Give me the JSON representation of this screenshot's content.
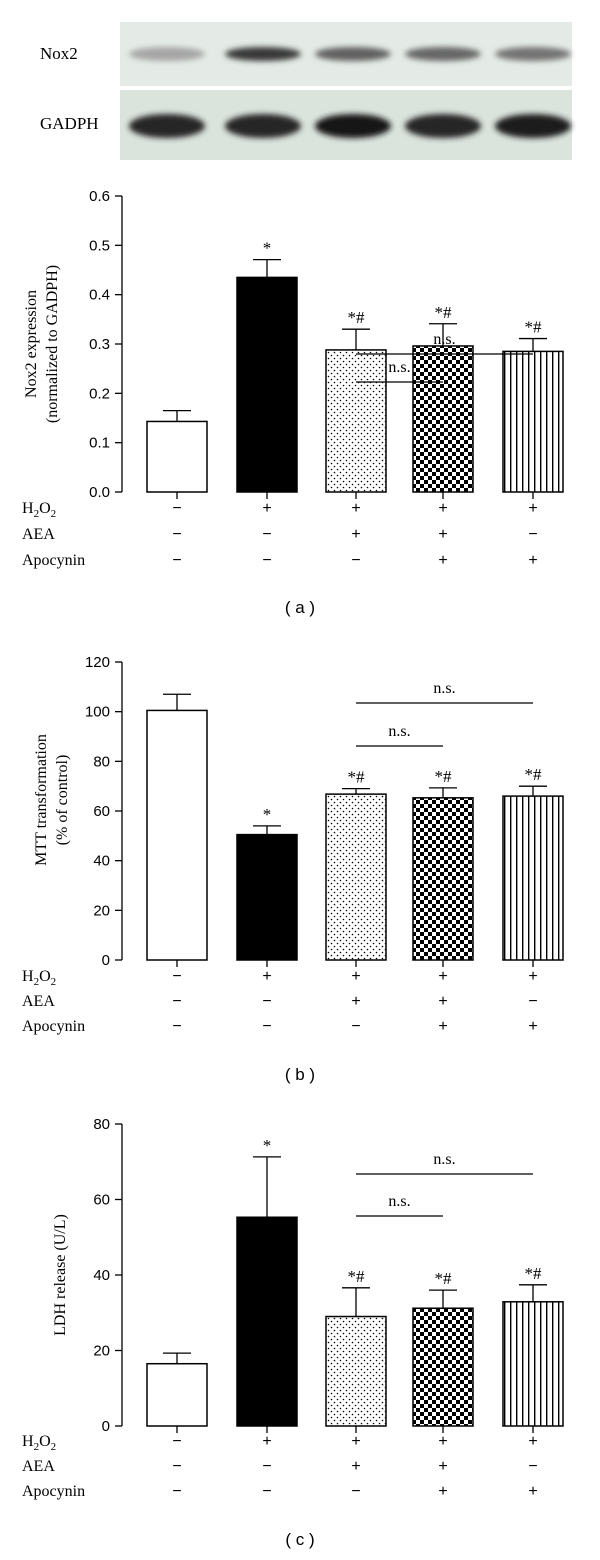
{
  "blot": {
    "labels": [
      "Nox2",
      "GADPH"
    ],
    "band_intensity": {
      "Nox2": [
        0.35,
        0.78,
        0.62,
        0.6,
        0.55
      ],
      "GADPH": [
        0.85,
        0.85,
        0.92,
        0.85,
        0.88
      ]
    }
  },
  "conditions": {
    "row_labels": [
      "H2O2",
      "AEA",
      "Apocynin"
    ],
    "rows": [
      [
        "−",
        "+",
        "+",
        "+",
        "+"
      ],
      [
        "−",
        "−",
        "+",
        "+",
        "−"
      ],
      [
        "−",
        "−",
        "−",
        "+",
        "+"
      ]
    ]
  },
  "colors": {
    "bar_fill_1": "#ffffff",
    "bar_fill_2": "#000000",
    "axis": "#000000"
  },
  "bar_patterns": [
    "open",
    "solid",
    "dots",
    "checker",
    "vertical-stripes"
  ],
  "chart_data": [
    {
      "type": "bar",
      "panel_caption": "( a )",
      "ylabel_lines": [
        "Nox2 expression",
        "(normalized to GADPH)"
      ],
      "ylim": [
        0,
        0.6
      ],
      "yticks": [
        "0.0",
        "0.1",
        "0.2",
        "0.3",
        "0.4",
        "0.5",
        "0.6"
      ],
      "values": [
        0.143,
        0.435,
        0.288,
        0.296,
        0.285
      ],
      "errors": [
        0.022,
        0.036,
        0.042,
        0.045,
        0.026
      ],
      "annotations": [
        "",
        "*",
        "*#",
        "*#",
        "*#"
      ],
      "significance": [
        {
          "label": "n.s.",
          "from": 2,
          "to": 3
        },
        {
          "label": "n.s.",
          "from": 2,
          "to": 4
        }
      ]
    },
    {
      "type": "bar",
      "panel_caption": "( b )",
      "ylabel_lines": [
        "MTT transformation",
        "(% of control)"
      ],
      "ylim": [
        0,
        120
      ],
      "yticks": [
        "0",
        "20",
        "40",
        "60",
        "80",
        "100",
        "120"
      ],
      "values": [
        100.5,
        50.5,
        66.8,
        65.3,
        66.0
      ],
      "errors": [
        6.5,
        3.5,
        2.2,
        4.0,
        4.0
      ],
      "annotations": [
        "",
        "*",
        "*#",
        "*#",
        "*#"
      ],
      "significance": [
        {
          "label": "n.s.",
          "from": 2,
          "to": 3
        },
        {
          "label": "n.s.",
          "from": 2,
          "to": 4
        }
      ]
    },
    {
      "type": "bar",
      "panel_caption": "( c )",
      "ylabel_lines": [
        "LDH release (U/L)"
      ],
      "ylim": [
        0,
        80
      ],
      "yticks": [
        "0",
        "20",
        "40",
        "60",
        "80"
      ],
      "values": [
        16.5,
        55.3,
        29.0,
        31.2,
        32.9
      ],
      "errors": [
        2.8,
        16.0,
        7.6,
        4.8,
        4.5
      ],
      "annotations": [
        "",
        "*",
        "*#",
        "*#",
        "*#"
      ],
      "significance": [
        {
          "label": "n.s.",
          "from": 2,
          "to": 3
        },
        {
          "label": "n.s.",
          "from": 2,
          "to": 4
        }
      ]
    }
  ]
}
